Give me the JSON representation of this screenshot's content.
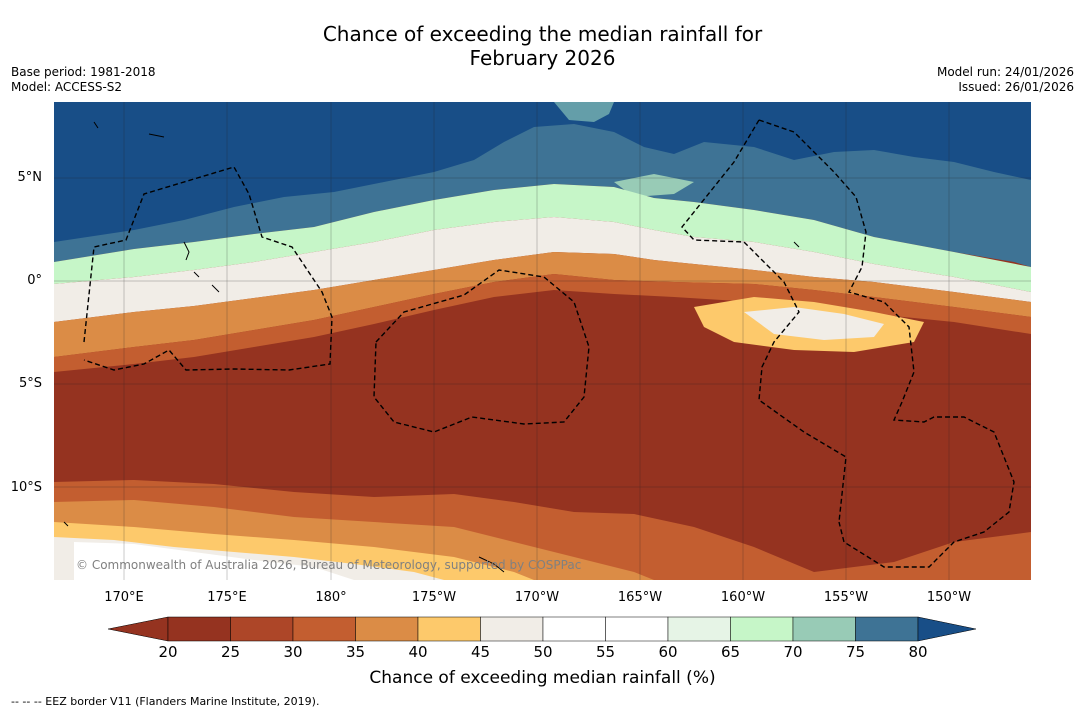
{
  "title_line1": "Chance of exceeding the median rainfall for",
  "title_line2": "February 2026",
  "base_period": "Base period: 1981-2018",
  "model": "Model: ACCESS-S2",
  "model_run": "Model run: 24/01/2026",
  "issued": "Issued: 26/01/2026",
  "lat_labels": [
    "5°N",
    "0°",
    "5°S",
    "10°S"
  ],
  "lon_labels": [
    "170°E",
    "175°E",
    "180°",
    "175°W",
    "170°W",
    "165°W",
    "160°W",
    "155°W",
    "150°W"
  ],
  "copyright": "© Commonwealth of Australia 2026, Bureau of Meteorology, supported by COSPPac",
  "colorbar": {
    "ticks": [
      "20",
      "25",
      "30",
      "35",
      "40",
      "45",
      "50",
      "55",
      "60",
      "65",
      "70",
      "75",
      "80"
    ],
    "colors": [
      "#953320",
      "#ad4628",
      "#c35e30",
      "#db8c46",
      "#fdc96b",
      "#f1ede7",
      "#ffffff",
      "#ffffff",
      "#e6f4e6",
      "#c6f6c8",
      "#98cbb6",
      "#649ea9",
      "#3e7395"
    ],
    "under_color": "#953320",
    "over_color": "#184e87",
    "title": "Chance of exceeding median rainfall (%)"
  },
  "footnote": "-- -- -- EEZ border V11 (Flanders Marine Institute, 2019)."
}
